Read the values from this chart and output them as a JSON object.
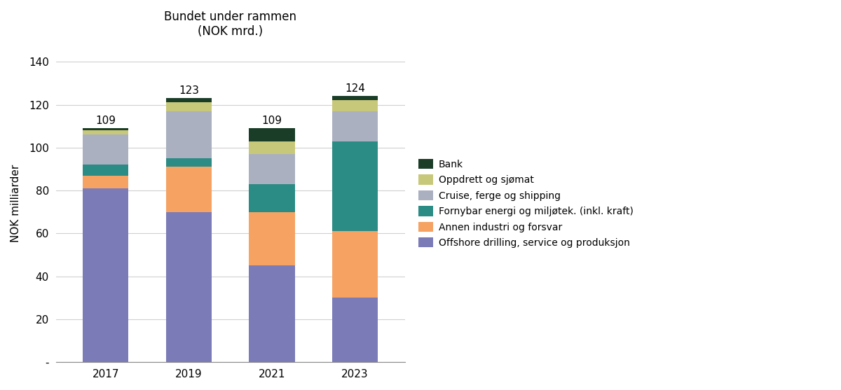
{
  "years": [
    "2017",
    "2019",
    "2021",
    "2023"
  ],
  "totals": [
    109,
    123,
    109,
    124
  ],
  "segments": {
    "Offshore drilling, service og produksjon": [
      81,
      70,
      45,
      30
    ],
    "Annen industri og forsvar": [
      6,
      21,
      25,
      31
    ],
    "Fornybar energi og miljøtek. (inkl. kraft)": [
      5,
      4,
      13,
      42
    ],
    "Cruise, ferge og shipping": [
      14,
      22,
      14,
      14
    ],
    "Oppdrett og sjømat": [
      2,
      4,
      6,
      5
    ],
    "Bank": [
      1,
      2,
      6,
      2
    ]
  },
  "colors": {
    "Offshore drilling, service og produksjon": "#7b7bb8",
    "Annen industri og forsvar": "#f5a263",
    "Fornybar energi og miljøtek. (inkl. kraft)": "#2b8b85",
    "Cruise, ferge og shipping": "#aab0c0",
    "Oppdrett og sjømat": "#c8c87a",
    "Bank": "#1a3d28"
  },
  "title_line1": "Bundet under rammen",
  "title_line2": "(NOK mrd.)",
  "ylabel": "NOK milliarder",
  "ylim": [
    0,
    148
  ],
  "yticks": [
    0,
    20,
    40,
    60,
    80,
    100,
    120,
    140
  ],
  "ytick_labels": [
    "-",
    "20",
    "40",
    "60",
    "80",
    "100",
    "120",
    "140"
  ],
  "bar_width": 0.55,
  "background_color": "#ffffff",
  "grid_color": "#d0d0d0"
}
